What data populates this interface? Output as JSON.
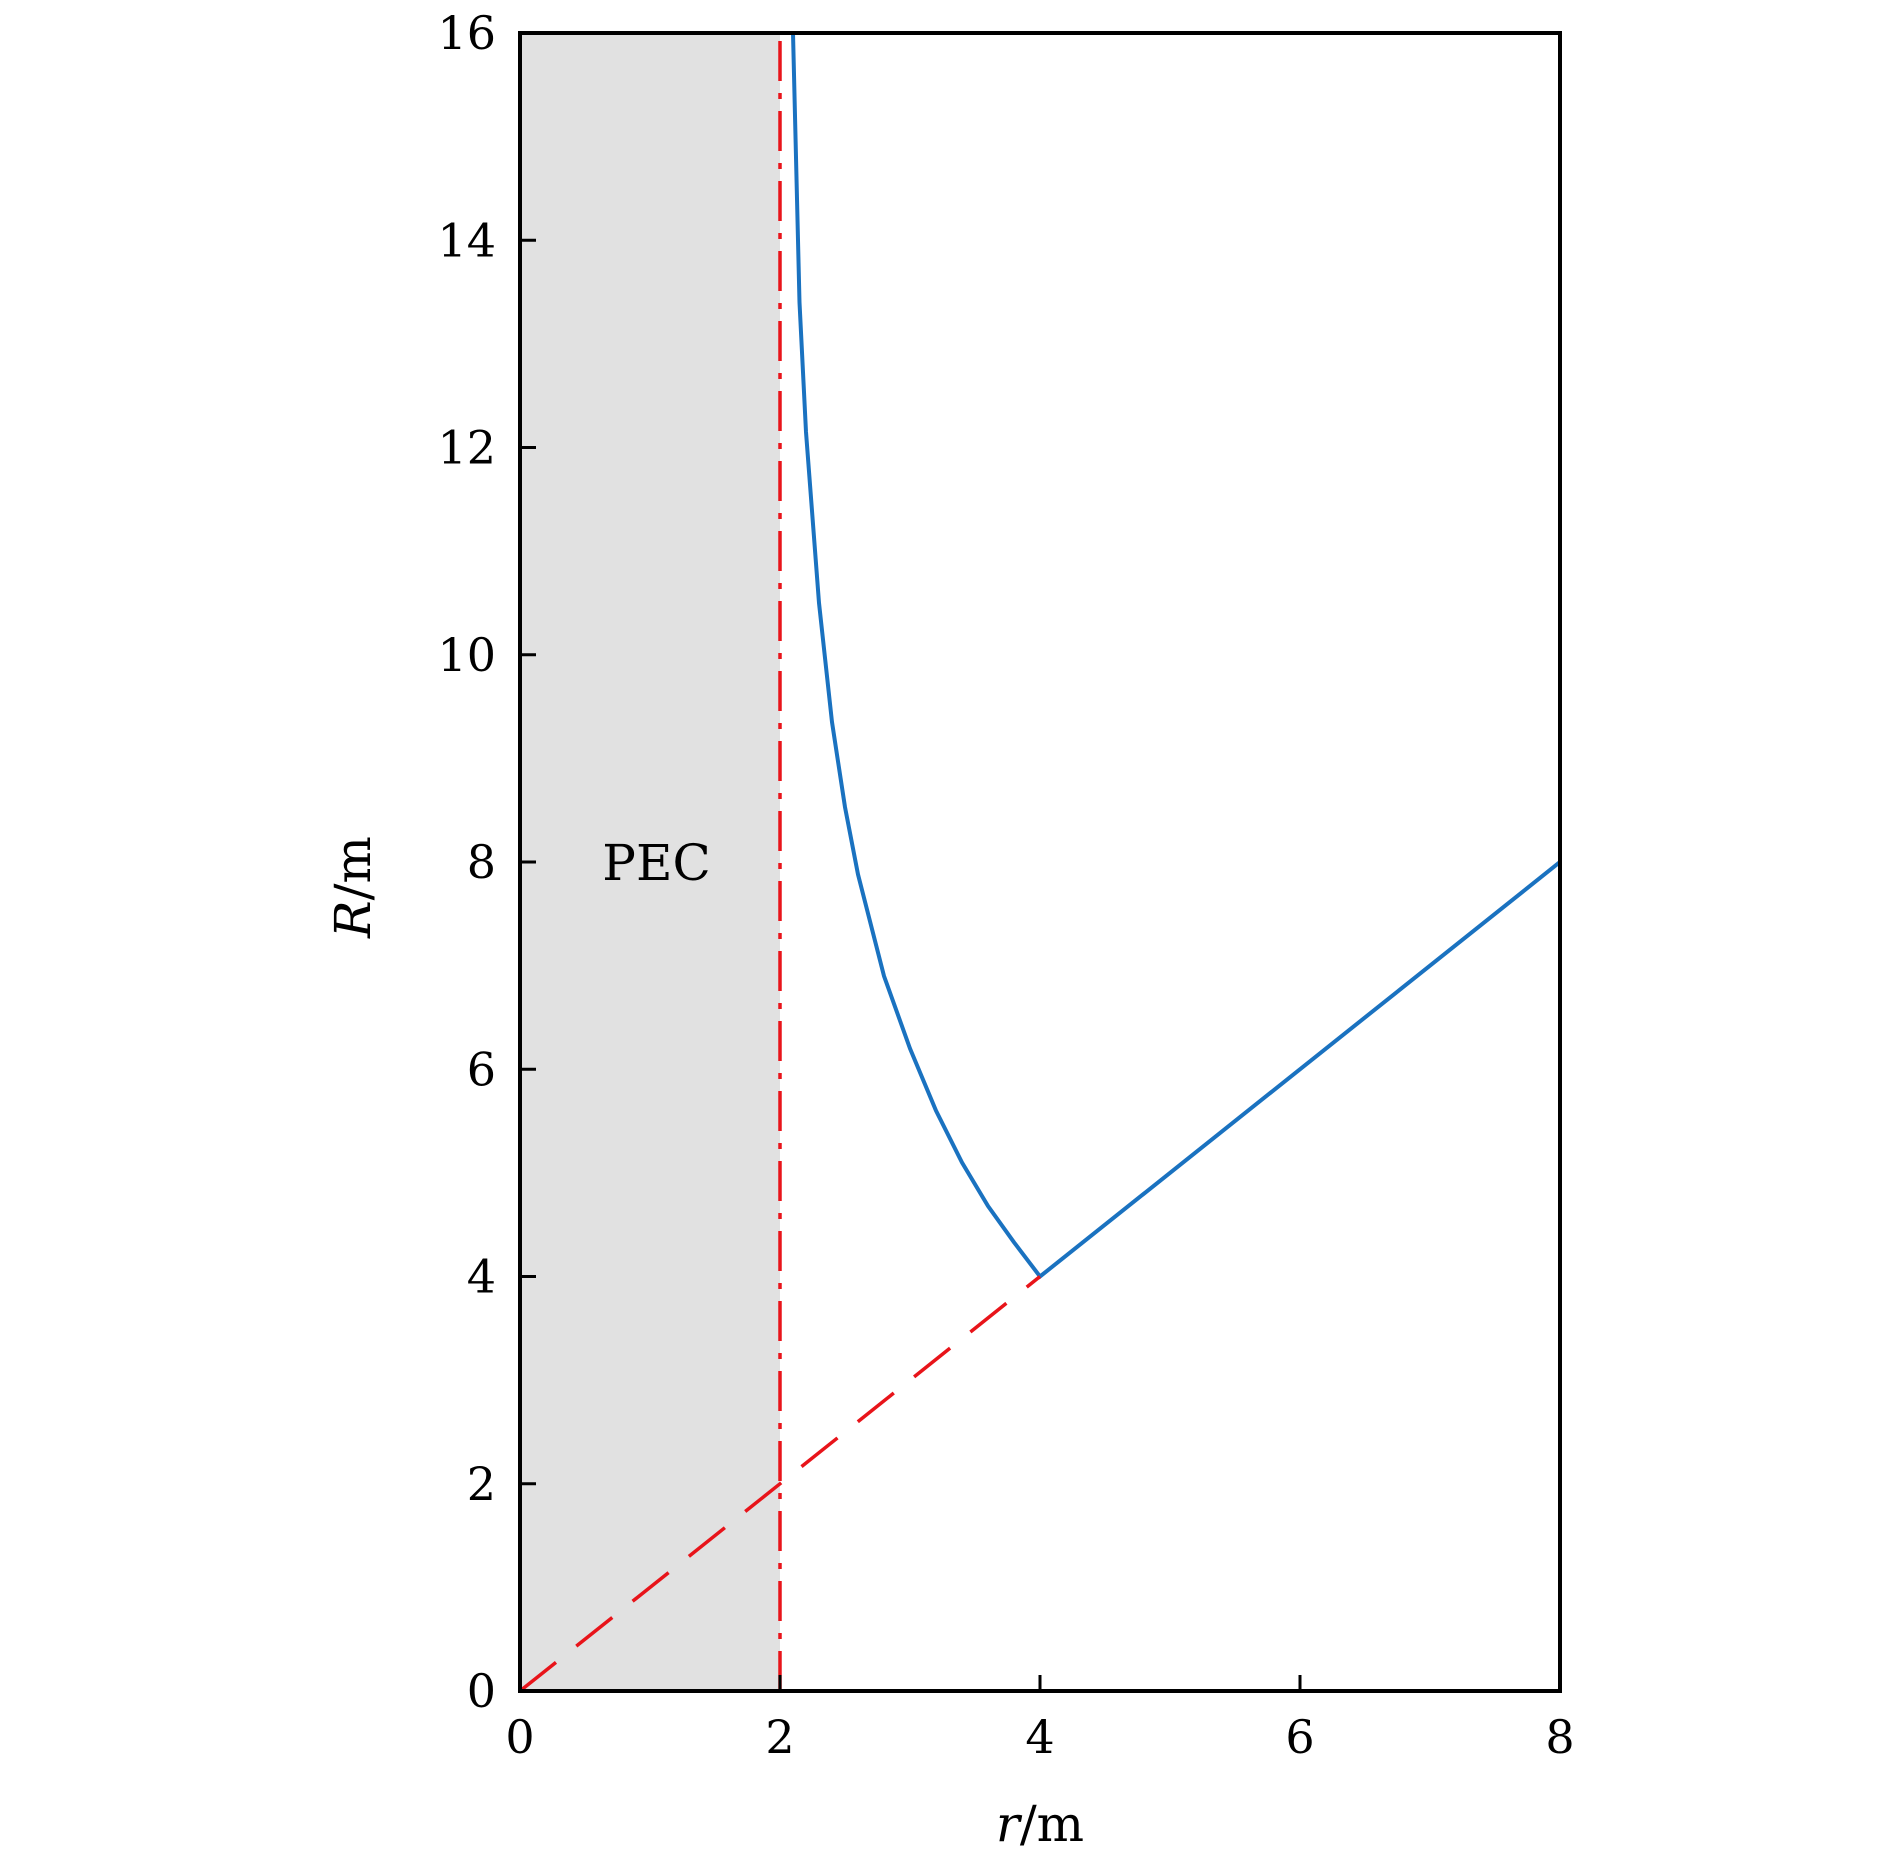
{
  "chart_data": {
    "type": "line",
    "xlabel": {
      "var": "r",
      "unit": "/m"
    },
    "ylabel": {
      "var": "R",
      "unit": "/m"
    },
    "xlim": [
      0,
      8
    ],
    "ylim": [
      0,
      16
    ],
    "xticks": [
      "0",
      "2",
      "4",
      "6",
      "8"
    ],
    "yticks": [
      "0",
      "2",
      "4",
      "6",
      "8",
      "10",
      "12",
      "14",
      "16"
    ],
    "grid": false,
    "legend": "none",
    "shaded_region": {
      "x": [
        0,
        2
      ],
      "label": "PEC",
      "label_at": [
        1.05,
        8
      ],
      "color": "#e1e1e1"
    },
    "series": [
      {
        "style": "solid",
        "color": "#1a72c0",
        "points": [
          [
            2.1,
            16
          ],
          [
            2.15,
            13.4
          ],
          [
            2.2,
            12.15
          ],
          [
            2.3,
            10.5
          ],
          [
            2.4,
            9.35
          ],
          [
            2.5,
            8.53
          ],
          [
            2.6,
            7.88
          ],
          [
            2.8,
            6.9
          ],
          [
            3.0,
            6.2
          ],
          [
            3.2,
            5.6
          ],
          [
            3.4,
            5.1
          ],
          [
            3.6,
            4.68
          ],
          [
            3.8,
            4.33
          ],
          [
            4.0,
            4.0
          ],
          [
            8.0,
            8.0
          ]
        ]
      },
      {
        "style": "dashed",
        "color": "#e8141a",
        "points": [
          [
            0,
            0
          ],
          [
            4,
            4
          ]
        ]
      },
      {
        "style": "dashdot",
        "color": "#e8141a",
        "points": [
          [
            2,
            0
          ],
          [
            2,
            16
          ]
        ]
      }
    ]
  }
}
